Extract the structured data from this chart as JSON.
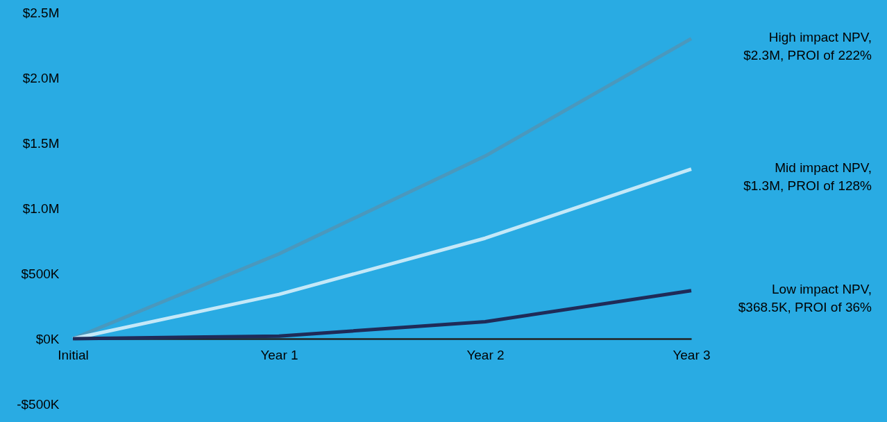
{
  "chart_data": {
    "type": "line",
    "categories": [
      "Initial",
      "Year 1",
      "Year 2",
      "Year 3"
    ],
    "series": [
      {
        "name": "High impact NPV,\n$2.3M, PROI of 222%",
        "color": "#4a98bd",
        "values": [
          0,
          650000,
          1400000,
          2300000
        ]
      },
      {
        "name": "Mid impact NPV,\n$1.3M, PROI of 128%",
        "color": "#c4e8f8",
        "values": [
          0,
          340000,
          770000,
          1300000
        ]
      },
      {
        "name": "Low impact NPV,\n$368.5K, PROI of 36%",
        "color": "#1f2b58",
        "values": [
          0,
          20000,
          130000,
          368500
        ]
      }
    ],
    "ylim": [
      -500000,
      2500000
    ],
    "yticks": [
      {
        "value": -500000,
        "label": "-$500K"
      },
      {
        "value": 0,
        "label": "$0K"
      },
      {
        "value": 500000,
        "label": "$500K"
      },
      {
        "value": 1000000,
        "label": "$1.0M"
      },
      {
        "value": 1500000,
        "label": "$1.5M"
      },
      {
        "value": 2000000,
        "label": "$2.0M"
      },
      {
        "value": 2500000,
        "label": "$2.5M"
      }
    ],
    "grid": false,
    "marker": "none",
    "line_style": "solid"
  }
}
